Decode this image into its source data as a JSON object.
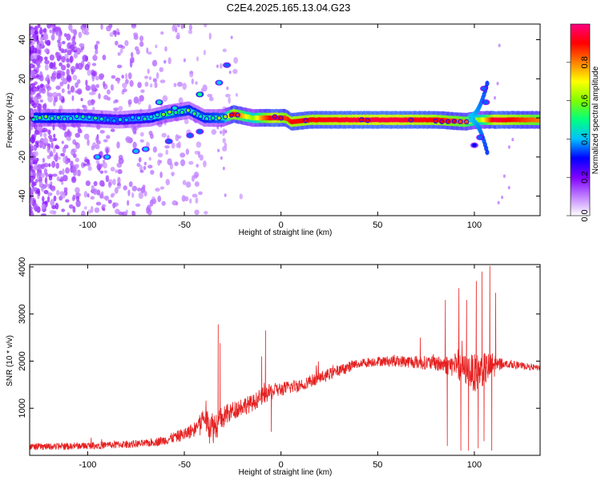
{
  "title": "C2E4.2025.165.13.04.G23",
  "chart_data": [
    {
      "type": "heatmap",
      "xlabel": "Height of straight line (km)",
      "ylabel": "Frequency (Hz)",
      "xlim": [
        -130,
        134
      ],
      "ylim": [
        -50,
        48
      ],
      "xticks": [
        -100,
        -50,
        0,
        50,
        100
      ],
      "xtick_labels": [
        "-100",
        "-50",
        "0",
        "50",
        "100"
      ],
      "yticks": [
        -40,
        -20,
        0,
        20,
        40
      ],
      "ytick_labels": [
        "-40",
        "-20",
        "0",
        "20",
        "40"
      ],
      "colorbar": {
        "label": "Normalized spectral amplitude",
        "range": [
          0,
          1
        ],
        "ticks": [
          0.0,
          0.2,
          0.4,
          0.6,
          0.8
        ],
        "tick_labels": [
          "0.0",
          "0.2",
          "0.4",
          "0.6",
          "0.8"
        ],
        "colors": [
          "#ffffff",
          "#c080ff",
          "#8000ff",
          "#0000ff",
          "#00c0ff",
          "#00ff80",
          "#80ff00",
          "#ffff00",
          "#ff8000",
          "#ff0000",
          "#ff0080"
        ]
      },
      "ridge": [
        {
          "x": -128,
          "y": 0,
          "a": 0.45
        },
        {
          "x": -105,
          "y": 0,
          "a": 0.4
        },
        {
          "x": -85,
          "y": -1,
          "a": 0.35
        },
        {
          "x": -68,
          "y": 0,
          "a": 0.4
        },
        {
          "x": -60,
          "y": 2,
          "a": 0.5
        },
        {
          "x": -48,
          "y": 4,
          "a": 0.45
        },
        {
          "x": -40,
          "y": 0,
          "a": 0.45
        },
        {
          "x": -30,
          "y": 0,
          "a": 0.5
        },
        {
          "x": -25,
          "y": 2,
          "a": 0.9
        },
        {
          "x": -15,
          "y": 0,
          "a": 0.6
        },
        {
          "x": -10,
          "y": 0,
          "a": 0.8
        },
        {
          "x": -4,
          "y": 0,
          "a": 0.95
        },
        {
          "x": 2,
          "y": 0,
          "a": 0.85
        },
        {
          "x": 5,
          "y": -2,
          "a": 0.9
        },
        {
          "x": 15,
          "y": -1,
          "a": 0.9
        },
        {
          "x": 40,
          "y": -1,
          "a": 0.95
        },
        {
          "x": 60,
          "y": -1,
          "a": 0.95
        },
        {
          "x": 80,
          "y": -1,
          "a": 0.9
        },
        {
          "x": 95,
          "y": -2,
          "a": 0.8
        },
        {
          "x": 102,
          "y": -1,
          "a": 0.6
        },
        {
          "x": 110,
          "y": -1,
          "a": 0.95
        },
        {
          "x": 134,
          "y": -1,
          "a": 0.8
        }
      ],
      "branches": [
        {
          "x": -95,
          "y": -20,
          "a": 0.4
        },
        {
          "x": -90,
          "y": -20,
          "a": 0.4
        },
        {
          "x": -75,
          "y": -17,
          "a": 0.4
        },
        {
          "x": -70,
          "y": -16,
          "a": 0.4
        },
        {
          "x": -58,
          "y": -12,
          "a": 0.35
        },
        {
          "x": -47,
          "y": -9,
          "a": 0.35
        },
        {
          "x": -42,
          "y": -7,
          "a": 0.35
        },
        {
          "x": -55,
          "y": 5,
          "a": 0.45
        },
        {
          "x": -63,
          "y": 8,
          "a": 0.45
        },
        {
          "x": -42,
          "y": 12,
          "a": 0.5
        },
        {
          "x": -32,
          "y": 18,
          "a": 0.4
        },
        {
          "x": -28,
          "y": 27,
          "a": 0.35
        },
        {
          "x": 105,
          "y": 15,
          "a": 0.35
        },
        {
          "x": 106,
          "y": 8,
          "a": 0.35
        },
        {
          "x": 103,
          "y": -10,
          "a": 0.35
        },
        {
          "x": 100,
          "y": -14,
          "a": 0.3
        }
      ]
    },
    {
      "type": "line",
      "xlabel": "Height of straight line (km)",
      "ylabel": "SNR (10 * v/v)",
      "xlim": [
        -130,
        134
      ],
      "ylim": [
        0,
        4050
      ],
      "xticks": [
        -100,
        -50,
        0,
        50,
        100
      ],
      "xtick_labels": [
        "-100",
        "-50",
        "0",
        "50",
        "100"
      ],
      "yticks": [
        1000,
        2000,
        3000,
        4000
      ],
      "ytick_labels": [
        "1000",
        "2000",
        "3000",
        "4000"
      ],
      "color": "#e62020",
      "x": [
        -130,
        -110,
        -90,
        -70,
        -60,
        -50,
        -45,
        -40,
        -35,
        -30,
        -25,
        -20,
        -15,
        -10,
        -5,
        0,
        10,
        20,
        30,
        40,
        50,
        60,
        70,
        80,
        90,
        100,
        110,
        115,
        125,
        134
      ],
      "y": [
        180,
        190,
        220,
        250,
        320,
        450,
        550,
        800,
        600,
        800,
        950,
        1050,
        1100,
        1250,
        1350,
        1400,
        1500,
        1650,
        1800,
        1950,
        2000,
        2000,
        1980,
        1950,
        1900,
        1750,
        1900,
        1950,
        1900,
        1850
      ],
      "noise": [
        70,
        70,
        80,
        80,
        100,
        140,
        160,
        250,
        350,
        250,
        200,
        200,
        180,
        180,
        180,
        150,
        140,
        130,
        120,
        110,
        100,
        120,
        140,
        160,
        250,
        400,
        300,
        80,
        70,
        60
      ],
      "spikes": [
        {
          "x": -32.5,
          "y": 2780
        },
        {
          "x": -31.5,
          "y": 2380
        },
        {
          "x": -8,
          "y": 2650
        },
        {
          "x": -10,
          "y": 2100
        },
        {
          "x": 72,
          "y": 2500
        },
        {
          "x": 85,
          "y": 3300
        },
        {
          "x": 86,
          "y": 200
        },
        {
          "x": 92,
          "y": 3550
        },
        {
          "x": 93,
          "y": 100
        },
        {
          "x": 96,
          "y": 3300
        },
        {
          "x": 97,
          "y": 100
        },
        {
          "x": 101,
          "y": 3700
        },
        {
          "x": 102,
          "y": 150
        },
        {
          "x": 104,
          "y": 3900
        },
        {
          "x": 105,
          "y": 300
        },
        {
          "x": 108,
          "y": 4020
        },
        {
          "x": 109,
          "y": 100
        },
        {
          "x": 111,
          "y": 3450
        },
        {
          "x": -37,
          "y": 250
        },
        {
          "x": -5,
          "y": 500
        }
      ]
    }
  ]
}
